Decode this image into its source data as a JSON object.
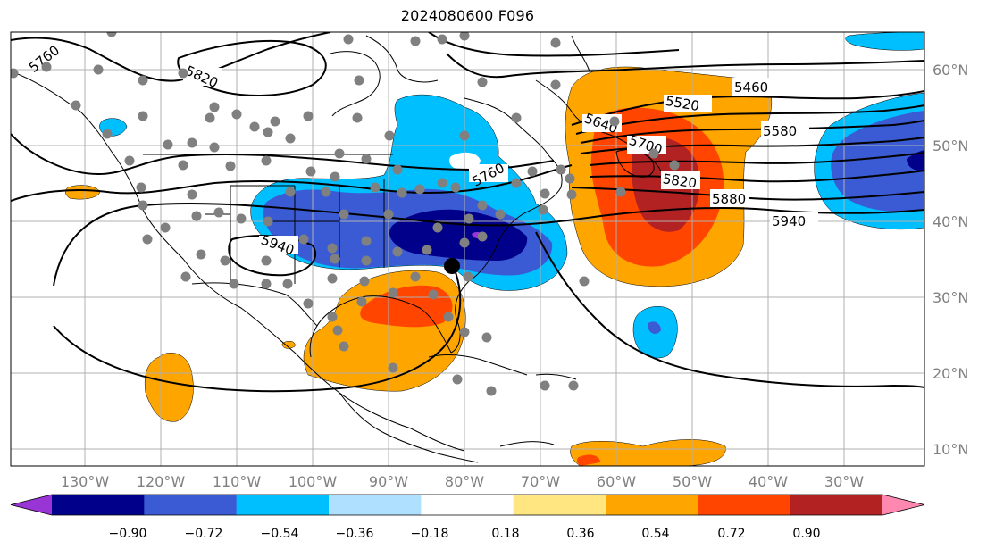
{
  "title": "2024080600 F096",
  "longitude_labels": [
    "130°W",
    "120°W",
    "110°W",
    "100°W",
    "90°W",
    "80°W",
    "70°W",
    "60°W",
    "50°W",
    "40°W",
    "30°W"
  ],
  "latitude_labels": [
    "60°N",
    "50°N",
    "40°N",
    "30°N",
    "20°N",
    "10°N"
  ],
  "colorbar": {
    "ticks": [
      "−0.90",
      "−0.72",
      "−0.54",
      "−0.36",
      "−0.18",
      "0.18",
      "0.36",
      "0.54",
      "0.72",
      "0.90"
    ],
    "colors": [
      "#9a35d5",
      "#00008b",
      "#3a5bd4",
      "#00bfff",
      "#b0e0ff",
      "#ffffff",
      "#ffe680",
      "#ffa500",
      "#ff4500",
      "#b22222",
      "#ff88b0"
    ]
  },
  "contour_labels": [
    "5760",
    "5820",
    "5940",
    "5760",
    "5640",
    "5700",
    "5820",
    "5880",
    "5940",
    "5520",
    "5580",
    "5460"
  ],
  "colors": {
    "station_marker": "#808080",
    "storm_marker": "#000000",
    "coastline": "#000000",
    "grid": "#b0b0b0"
  }
}
